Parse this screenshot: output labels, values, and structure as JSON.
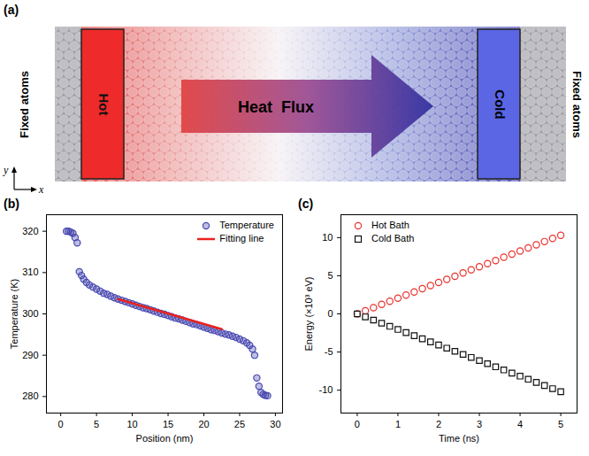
{
  "diagram": {
    "panel_label": "(a)",
    "left_text": "Fixed atoms",
    "right_text": "Fixed atoms",
    "hot_label": "Hot",
    "cold_label": "Cold",
    "arrow_label": "Heat  Flux",
    "axis_x": "x",
    "axis_y": "y"
  },
  "chart_data": [
    {
      "type": "scatter",
      "panel_label": "(b)",
      "x_label": "Position (nm)",
      "y_label": "Temperature (K)",
      "xlim": [
        -2,
        31
      ],
      "xticks": [
        0,
        5,
        10,
        15,
        20,
        25,
        30
      ],
      "ylim": [
        276,
        324
      ],
      "yticks": [
        280,
        290,
        300,
        310,
        320
      ],
      "grid": false,
      "legend": "upper right",
      "series": [
        {
          "name": "Temperature",
          "type": "scatter",
          "marker": "circle",
          "color": "#4848b0",
          "x": [
            0.8,
            1.1,
            1.4,
            1.7,
            2.0,
            2.3,
            2.6,
            2.9,
            3.2,
            3.6,
            4.0,
            4.5,
            5.0,
            5.5,
            6.0,
            6.5,
            7.0,
            7.5,
            8.0,
            8.5,
            9.0,
            9.5,
            10.0,
            10.5,
            11.0,
            11.5,
            12.0,
            12.5,
            13.0,
            13.5,
            14.0,
            14.5,
            15.0,
            15.5,
            16.0,
            16.5,
            17.0,
            17.5,
            18.0,
            18.5,
            19.0,
            19.5,
            20.0,
            20.5,
            21.0,
            21.5,
            22.0,
            22.5,
            23.0,
            23.5,
            24.0,
            24.5,
            25.0,
            25.5,
            26.0,
            26.4,
            26.8,
            27.1,
            27.4,
            27.7,
            28.0,
            28.3,
            28.6,
            28.9
          ],
          "values": [
            320.0,
            320.0,
            319.8,
            319.5,
            318.5,
            317.2,
            310.2,
            309.3,
            308.4,
            307.6,
            307.0,
            306.5,
            306.0,
            305.5,
            305.0,
            304.7,
            304.3,
            303.9,
            303.6,
            303.3,
            303.0,
            302.7,
            302.4,
            302.1,
            301.8,
            301.5,
            301.3,
            301.0,
            300.7,
            300.4,
            300.1,
            299.9,
            299.6,
            299.3,
            299.0,
            298.8,
            298.5,
            298.2,
            297.9,
            297.6,
            297.4,
            297.1,
            296.8,
            296.5,
            296.2,
            296.0,
            295.7,
            295.4,
            295.1,
            294.9,
            294.6,
            294.3,
            293.9,
            293.5,
            293.0,
            292.4,
            291.5,
            290.0,
            284.5,
            282.5,
            281.0,
            280.5,
            280.3,
            280.2
          ]
        },
        {
          "name": "Fitting line",
          "type": "line",
          "line_style": "solid",
          "color": "#e8231e",
          "x": [
            8.0,
            22.5
          ],
          "values": [
            303.6,
            296.3
          ]
        }
      ]
    },
    {
      "type": "scatter",
      "panel_label": "(c)",
      "x_label": "Time (ns)",
      "y_label": "Energy (×10³ eV)",
      "xlim": [
        -0.4,
        5.4
      ],
      "xticks": [
        0,
        1,
        2,
        3,
        4,
        5
      ],
      "ylim": [
        -13,
        13
      ],
      "yticks": [
        -10,
        -5,
        0,
        5,
        10
      ],
      "grid": false,
      "legend": "upper left",
      "series": [
        {
          "name": "Hot Bath",
          "type": "scatter",
          "marker": "circle",
          "color": "#e8322d",
          "x": [
            0,
            0.2,
            0.4,
            0.6,
            0.8,
            1.0,
            1.2,
            1.4,
            1.6,
            1.8,
            2.0,
            2.2,
            2.4,
            2.6,
            2.8,
            3.0,
            3.2,
            3.4,
            3.6,
            3.8,
            4.0,
            4.2,
            4.4,
            4.6,
            4.8,
            5.0
          ],
          "values": [
            0,
            0.41,
            0.82,
            1.24,
            1.65,
            2.06,
            2.47,
            2.88,
            3.3,
            3.71,
            4.12,
            4.53,
            4.94,
            5.36,
            5.77,
            6.18,
            6.59,
            7.0,
            7.42,
            7.83,
            8.24,
            8.65,
            9.06,
            9.48,
            9.89,
            10.3
          ]
        },
        {
          "name": "Cold Bath",
          "type": "scatter",
          "marker": "square",
          "color": "#111111",
          "x": [
            0,
            0.2,
            0.4,
            0.6,
            0.8,
            1.0,
            1.2,
            1.4,
            1.6,
            1.8,
            2.0,
            2.2,
            2.4,
            2.6,
            2.8,
            3.0,
            3.2,
            3.4,
            3.6,
            3.8,
            4.0,
            4.2,
            4.4,
            4.6,
            4.8,
            5.0
          ],
          "values": [
            0,
            -0.4,
            -0.81,
            -1.22,
            -1.63,
            -2.04,
            -2.45,
            -2.86,
            -3.26,
            -3.67,
            -4.08,
            -4.49,
            -4.9,
            -5.31,
            -5.71,
            -6.12,
            -6.53,
            -6.94,
            -7.35,
            -7.76,
            -8.16,
            -8.57,
            -8.98,
            -9.39,
            -9.8,
            -10.2
          ]
        }
      ]
    }
  ]
}
